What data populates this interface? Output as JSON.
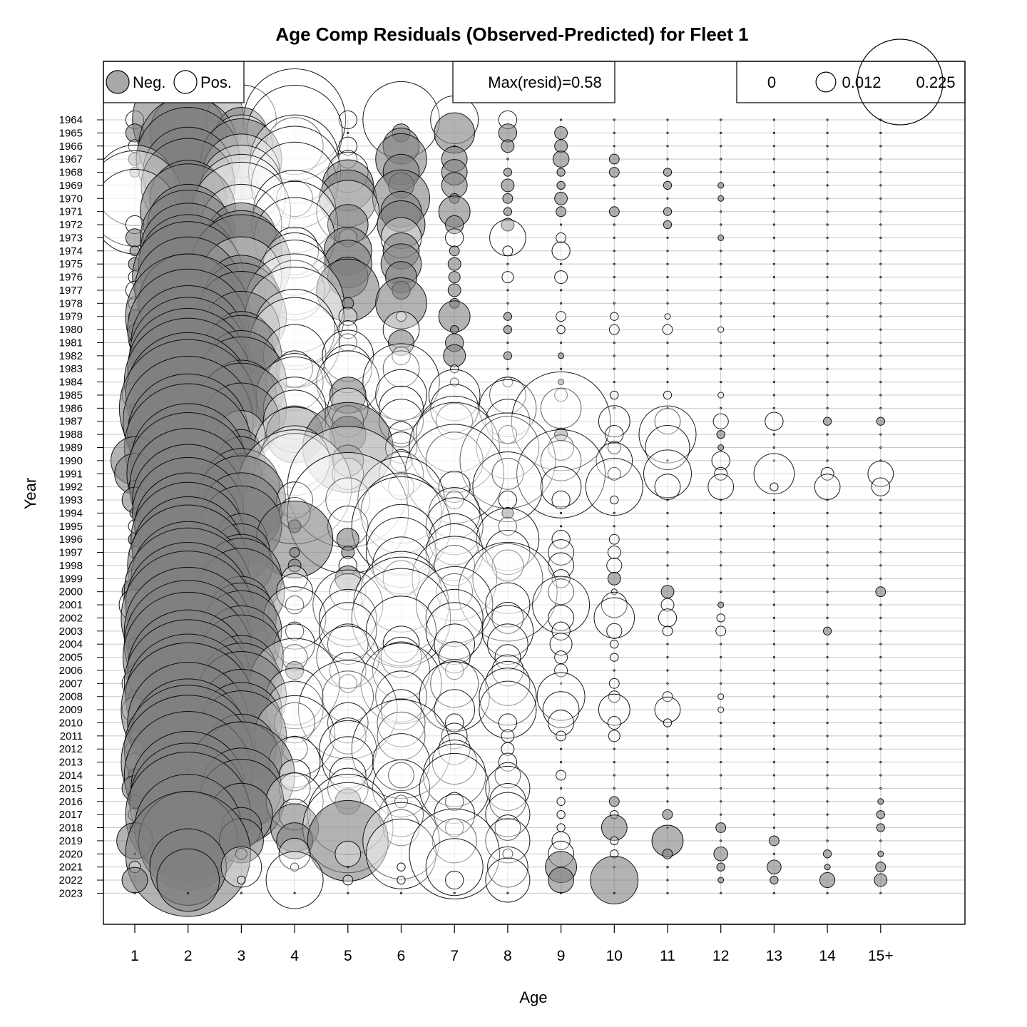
{
  "chart_data": {
    "type": "scatter",
    "title": "Age Comp Residuals (Observed-Predicted) for Fleet 1",
    "xlabel": "Age",
    "ylabel": "Year",
    "categories": [
      "1",
      "2",
      "3",
      "4",
      "5",
      "6",
      "7",
      "8",
      "9",
      "10",
      "11",
      "12",
      "13",
      "14",
      "15+"
    ],
    "years": [
      1964,
      1965,
      1966,
      1967,
      1968,
      1969,
      1970,
      1971,
      1972,
      1973,
      1974,
      1975,
      1976,
      1977,
      1978,
      1979,
      1980,
      1981,
      1982,
      1983,
      1984,
      1985,
      1986,
      1987,
      1988,
      1989,
      1990,
      1991,
      1992,
      1993,
      1994,
      1995,
      1996,
      1997,
      1998,
      1999,
      2000,
      2001,
      2002,
      2003,
      2004,
      2005,
      2006,
      2007,
      2008,
      2009,
      2010,
      2011,
      2012,
      2013,
      2014,
      2015,
      2016,
      2017,
      2018,
      2019,
      2020,
      2021,
      2022,
      2023
    ],
    "legend": {
      "neg_label": "Neg.",
      "pos_label": "Pos.",
      "max_label": "Max(resid)=0.58",
      "size_labels": [
        "0",
        "0.012",
        "0.225"
      ],
      "size_values": [
        0,
        0.012,
        0.225
      ]
    },
    "max_resid": 0.58,
    "residuals": [
      [
        0.01,
        -0.38,
        0.15,
        0.32,
        0.01,
        0.18,
        0.07,
        0.01,
        0,
        0,
        0,
        0,
        0,
        0,
        0
      ],
      [
        -0.01,
        -0.18,
        -0.08,
        0.28,
        0,
        -0.01,
        -0.05,
        -0.01,
        -0.005,
        0,
        0,
        0,
        0,
        0,
        0
      ],
      [
        0.005,
        -0.3,
        0.12,
        0.1,
        0.01,
        -0.04,
        0,
        -0.005,
        -0.005,
        0,
        0,
        0,
        0,
        0,
        0
      ],
      [
        -0.005,
        -0.33,
        -0.2,
        0.24,
        0.01,
        -0.08,
        -0.02,
        0,
        -0.008,
        -0.003,
        0,
        0,
        0,
        0,
        0
      ],
      [
        -0.003,
        -0.25,
        0.18,
        0.26,
        0.05,
        -0.04,
        -0.02,
        -0.002,
        -0.002,
        -0.003,
        -0.002,
        0,
        0,
        0,
        0
      ],
      [
        0.2,
        -0.27,
        0.2,
        0.23,
        -0.08,
        -0.02,
        -0.02,
        -0.005,
        -0.002,
        0,
        -0.002,
        -0.001,
        0,
        0,
        0
      ],
      [
        0.28,
        -0.18,
        0.24,
        0.04,
        -0.1,
        -0.1,
        -0.003,
        -0.003,
        -0.005,
        0,
        0,
        -0.001,
        0,
        0,
        0
      ],
      [
        0.22,
        -0.28,
        0.3,
        0.21,
        0.12,
        -0.05,
        -0.03,
        -0.002,
        -0.003,
        -0.003,
        -0.002,
        0,
        0,
        0,
        0
      ],
      [
        0.01,
        -0.2,
        0.2,
        0.23,
        -0.05,
        -0.07,
        -0.01,
        -0.005,
        0,
        0,
        -0.002,
        0,
        0,
        0,
        0
      ],
      [
        -0.01,
        -0.28,
        -0.15,
        0.2,
        0.01,
        0.05,
        0.01,
        0.04,
        0.003,
        0,
        0,
        -0.001,
        0,
        0,
        0
      ],
      [
        -0.003,
        -0.28,
        -0.2,
        0.07,
        -0.07,
        -0.04,
        -0.003,
        0.003,
        0.01,
        0,
        0,
        0,
        0,
        0,
        0
      ],
      [
        -0.005,
        -0.3,
        -0.3,
        0.12,
        -0.07,
        -0.05,
        -0.005,
        0,
        0,
        0,
        0,
        0,
        0,
        0,
        0
      ],
      [
        0.005,
        -0.38,
        0.2,
        0.17,
        -0.05,
        -0.03,
        -0.004,
        0.004,
        0.005,
        0,
        0,
        0,
        0,
        0,
        0
      ],
      [
        0.01,
        -0.35,
        -0.15,
        0.11,
        -0.12,
        -0.01,
        -0.005,
        0,
        0,
        0,
        0,
        0,
        0,
        0,
        0
      ],
      [
        0.005,
        -0.3,
        -0.2,
        0.3,
        -0.004,
        -0.08,
        -0.003,
        0,
        0,
        0,
        0,
        0,
        0,
        0,
        0
      ],
      [
        -0.005,
        -0.48,
        -0.25,
        0.3,
        0.01,
        0.003,
        -0.03,
        -0.002,
        0.003,
        0.002,
        0.001,
        0,
        0,
        0,
        0
      ],
      [
        -0.004,
        -0.45,
        -0.18,
        0.2,
        0.01,
        0.04,
        -0.002,
        -0.002,
        0.002,
        0.003,
        0.003,
        0.001,
        0,
        0,
        0
      ],
      [
        0.004,
        -0.4,
        -0.12,
        0.25,
        0.01,
        -0.02,
        -0.01,
        0,
        0,
        0,
        0,
        0,
        0,
        0,
        0
      ],
      [
        -0.003,
        -0.42,
        -0.2,
        0.12,
        0.08,
        0.01,
        -0.015,
        -0.002,
        -0.001,
        0,
        0,
        0,
        0,
        0,
        0
      ],
      [
        0.005,
        -0.45,
        -0.18,
        0.04,
        0.07,
        0.04,
        0.002,
        0,
        0,
        0,
        0,
        0,
        0,
        0,
        0
      ],
      [
        0.005,
        -0.5,
        -0.25,
        0.1,
        0.12,
        0.18,
        0.002,
        0.003,
        -0.001,
        0,
        0,
        0,
        0,
        0,
        0
      ],
      [
        0.02,
        -0.48,
        -0.15,
        0.18,
        -0.04,
        0.08,
        0.08,
        0.04,
        0.005,
        0.002,
        0.002,
        0.001,
        0,
        0,
        0
      ],
      [
        -0.003,
        -0.58,
        -0.25,
        0.12,
        0.05,
        0.06,
        0.07,
        0.1,
        0.05,
        0,
        0,
        0,
        0,
        0,
        0
      ],
      [
        -0.005,
        -0.52,
        -0.18,
        0.12,
        0.03,
        0.06,
        0.04,
        0.06,
        0.3,
        0.03,
        0.02,
        0.007,
        0.01,
        -0.002,
        -0.002
      ],
      [
        -0.003,
        -0.45,
        0.07,
        -0.1,
        -0.04,
        0.02,
        0.18,
        0.01,
        -0.005,
        0.01,
        0.1,
        -0.002,
        0,
        0,
        0
      ],
      [
        -0.004,
        -0.5,
        -0.04,
        0.2,
        -0.25,
        0.03,
        0.25,
        0.12,
        0.02,
        0.005,
        0.06,
        -0.001,
        0,
        0,
        0
      ],
      [
        -0.07,
        -0.4,
        -0.07,
        0.15,
        -0.03,
        0.015,
        0.1,
        0.28,
        0.05,
        0.04,
        0,
        0.01,
        0,
        0,
        0
      ],
      [
        -0.05,
        -0.46,
        -0.05,
        0.2,
        0.03,
        0.06,
        0.3,
        0.03,
        0.24,
        0.005,
        0.07,
        0.005,
        0.05,
        0.005,
        0.02
      ],
      [
        -0.005,
        -0.42,
        -0.18,
        0.4,
        0.45,
        0.02,
        0.03,
        0.15,
        0.05,
        0.1,
        0.02,
        0.02,
        0.002,
        0.02,
        0.01
      ],
      [
        -0.02,
        -0.38,
        -0.24,
        0.04,
        0.06,
        0.23,
        0.01,
        0.01,
        0.01,
        0.002,
        0,
        0,
        0,
        0,
        0
      ],
      [
        -0.003,
        -0.38,
        -0.2,
        0.03,
        0.45,
        0.2,
        0.08,
        -0.004,
        0,
        0,
        0,
        0,
        0,
        0,
        0
      ],
      [
        0.005,
        -0.35,
        -0.2,
        -0.005,
        0.05,
        0.3,
        0.1,
        0.01,
        0,
        0,
        0,
        0,
        0,
        0,
        0
      ],
      [
        -0.005,
        -0.4,
        -0.08,
        -0.18,
        -0.015,
        0.15,
        0.08,
        0.12,
        0.01,
        0.003,
        0,
        0,
        0,
        0,
        0
      ],
      [
        0.004,
        -0.38,
        -0.1,
        -0.003,
        -0.005,
        0.15,
        0.1,
        0.06,
        0.02,
        0.005,
        0,
        0,
        0,
        0,
        0
      ],
      [
        0.003,
        -0.45,
        -0.12,
        -0.005,
        0.01,
        0.1,
        0.05,
        0.03,
        0.02,
        0.007,
        0,
        0,
        0,
        0,
        0
      ],
      [
        0.01,
        -0.4,
        -0.2,
        0.02,
        -0.02,
        0.04,
        0.22,
        0.15,
        0.01,
        -0.005,
        0,
        0,
        0,
        0,
        0
      ],
      [
        -0.02,
        -0.5,
        -0.23,
        0.04,
        0.04,
        0.2,
        0.04,
        0.3,
        0.02,
        0.001,
        -0.005,
        0,
        0,
        0,
        -0.003
      ],
      [
        0.03,
        -0.48,
        -0.1,
        0.01,
        0.15,
        0.28,
        0.18,
        0.06,
        0.1,
        0.02,
        0.005,
        -0.001,
        0,
        0,
        0
      ],
      [
        -0.004,
        -0.55,
        -0.15,
        0.12,
        0.1,
        0.3,
        0.1,
        0.03,
        0.02,
        0.05,
        0.01,
        0.002,
        0,
        0,
        0
      ],
      [
        -0.005,
        -0.5,
        -0.2,
        0.01,
        0.1,
        0.15,
        0.1,
        0.08,
        0.01,
        0.007,
        0.003,
        0.003,
        0,
        -0.002,
        0
      ],
      [
        -0.005,
        -0.5,
        -0.18,
        0.05,
        0.05,
        0.04,
        0.05,
        0.05,
        0.015,
        0.002,
        0,
        0,
        0,
        0,
        0
      ],
      [
        0.005,
        -0.52,
        -0.22,
        0.02,
        0.12,
        0.05,
        0.03,
        0.02,
        0.005,
        0.002,
        0,
        0,
        0,
        0,
        0
      ],
      [
        -0.005,
        -0.45,
        -0.15,
        -0.01,
        0.04,
        0.1,
        0.01,
        0.03,
        0.005,
        0,
        0,
        0,
        0,
        0,
        0
      ],
      [
        0.02,
        -0.5,
        -0.2,
        0.25,
        0.01,
        0.2,
        0.07,
        0.06,
        0,
        0.003,
        0,
        0,
        0,
        0,
        0
      ],
      [
        -0.005,
        -0.48,
        -0.25,
        0.1,
        0.08,
        0.08,
        0.15,
        0.1,
        0.07,
        0.004,
        0.003,
        0.001,
        0,
        0,
        0
      ],
      [
        0.02,
        -0.55,
        -0.2,
        0.1,
        0.3,
        0.05,
        0.05,
        0.1,
        0.04,
        0.03,
        0.02,
        0.001,
        0,
        0,
        0
      ],
      [
        -0.004,
        -0.45,
        -0.2,
        0.05,
        0.05,
        0.07,
        0.01,
        0.01,
        0.02,
        0.005,
        0.002,
        0,
        0,
        0,
        0
      ],
      [
        0.004,
        -0.4,
        -0.25,
        0.2,
        0.04,
        0.07,
        0.02,
        0.005,
        0.003,
        0.004,
        0,
        0,
        0,
        0,
        0
      ],
      [
        0.01,
        -0.5,
        -0.15,
        0.02,
        0.1,
        0.3,
        0.03,
        0.005,
        0,
        0,
        0,
        0,
        0,
        0,
        0
      ],
      [
        0.01,
        -0.55,
        -0.2,
        0.08,
        0.08,
        0.1,
        0.06,
        0.01,
        0,
        0,
        0,
        0,
        0,
        0,
        0
      ],
      [
        -0.005,
        -0.5,
        -0.35,
        0.03,
        0.04,
        0.02,
        0.12,
        0.02,
        0.003,
        0,
        0,
        0,
        0,
        0,
        0
      ],
      [
        -0.02,
        -0.4,
        -0.2,
        0.03,
        0.05,
        0.1,
        0.15,
        0.06,
        0,
        0,
        0,
        0,
        0,
        0,
        0
      ],
      [
        -0.005,
        -0.42,
        -0.22,
        0.1,
        -0.02,
        0.005,
        0.01,
        0.04,
        0.002,
        -0.003,
        0,
        0,
        0,
        0,
        -0.001
      ],
      [
        0.005,
        -0.48,
        -0.12,
        0.03,
        0.2,
        0.06,
        0.05,
        0.06,
        0.002,
        0.002,
        -0.003,
        0,
        0,
        0,
        -0.002
      ],
      [
        -0.003,
        -0.35,
        -0.05,
        -0.07,
        0.25,
        0.04,
        0.01,
        0.02,
        0.002,
        -0.02,
        0,
        -0.003,
        0,
        0,
        -0.002
      ],
      [
        -0.04,
        -0.3,
        -0.06,
        -0.04,
        -0.2,
        0.18,
        0.06,
        0.06,
        0.01,
        0.002,
        -0.03,
        0,
        -0.003,
        0,
        0
      ],
      [
        0,
        -0.48,
        -0.004,
        0.03,
        0.02,
        0.15,
        0.25,
        0.003,
        0.02,
        0.002,
        -0.003,
        -0.006,
        0,
        -0.002,
        -0.001
      ],
      [
        0.004,
        -0.18,
        0.05,
        0.002,
        0,
        0.002,
        0.1,
        0.05,
        -0.03,
        0,
        0,
        -0.002,
        -0.006,
        -0.001,
        -0.003
      ],
      [
        -0.02,
        -0.12,
        0.002,
        0.1,
        0.003,
        0.002,
        0.01,
        0.06,
        -0.02,
        -0.07,
        0,
        -0.001,
        -0.002,
        -0.007,
        -0.005
      ],
      [
        0,
        0,
        0,
        0,
        0,
        0,
        0,
        0,
        0,
        0,
        0,
        0,
        0,
        0,
        0
      ]
    ]
  }
}
